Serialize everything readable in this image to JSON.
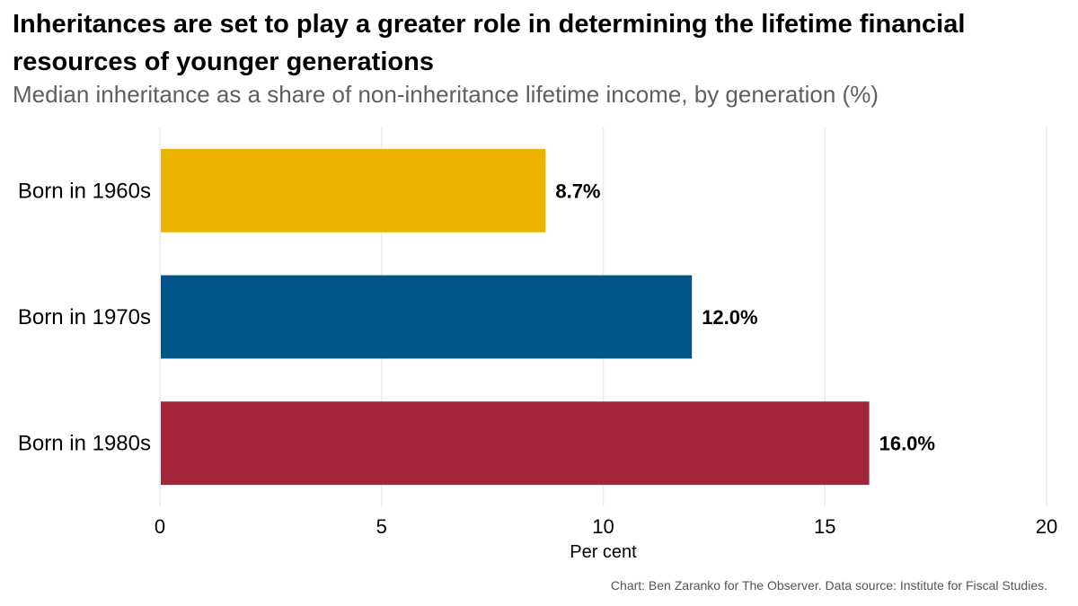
{
  "chart_data": {
    "type": "bar",
    "orientation": "horizontal",
    "title": "Inheritances are set to play a greater role in determining the lifetime financial resources of younger generations",
    "subtitle": "Median inheritance as a share of non-inheritance lifetime income, by generation (%)",
    "categories": [
      "Born in 1960s",
      "Born in 1970s",
      "Born in 1980s"
    ],
    "values": [
      8.7,
      12.0,
      16.0
    ],
    "value_labels": [
      "8.7%",
      "12.0%",
      "16.0%"
    ],
    "colors": [
      "#ebb300",
      "#00558a",
      "#a3263a"
    ],
    "xlabel": "Per cent",
    "ylabel": "",
    "xlim": [
      0,
      20
    ],
    "xticks": [
      0,
      5,
      10,
      15,
      20
    ],
    "xtick_labels": [
      "0",
      "5",
      "10",
      "15",
      "20"
    ],
    "grid": true,
    "caption": "Chart: Ben Zaranko for The Observer. Data source: Institute for Fiscal Studies."
  }
}
